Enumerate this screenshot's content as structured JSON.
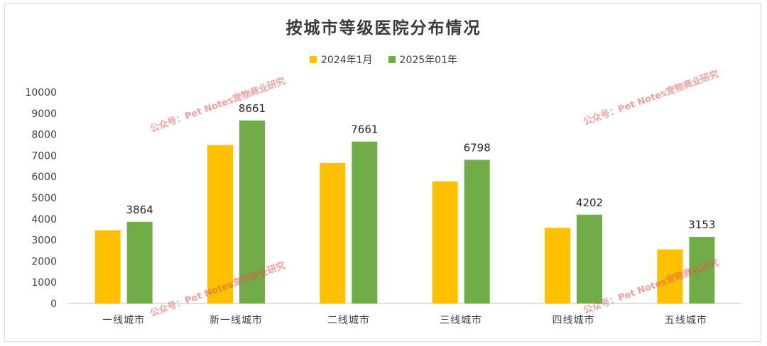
{
  "chart_data": {
    "type": "bar",
    "title": "按城市等级医院分布情况",
    "categories": [
      "一线城市",
      "新一线城市",
      "二线城市",
      "三线城市",
      "四线城市",
      "五线城市"
    ],
    "series": [
      {
        "name": "2024年1月",
        "values": [
          3460,
          7500,
          6650,
          5780,
          3580,
          2560
        ],
        "color": "#FFC000",
        "show_labels": false
      },
      {
        "name": "2025年01年",
        "values": [
          3864,
          8661,
          7661,
          6798,
          4202,
          3153
        ],
        "color": "#70AD47",
        "show_labels": true
      }
    ],
    "ylim": [
      0,
      10000
    ],
    "yticks": [
      0,
      1000,
      2000,
      3000,
      4000,
      5000,
      6000,
      7000,
      8000,
      9000,
      10000
    ],
    "xlabel": "",
    "ylabel": "",
    "grid": false,
    "legend_position": "top-center"
  },
  "watermarks": [
    "公众号：Pet Notes宠物商业研究",
    "公众号：Pet Notes宠物商业研究",
    "公众号：Pet Notes宠物商业研究",
    "公众号：Pet Notes宠物商业研究"
  ]
}
